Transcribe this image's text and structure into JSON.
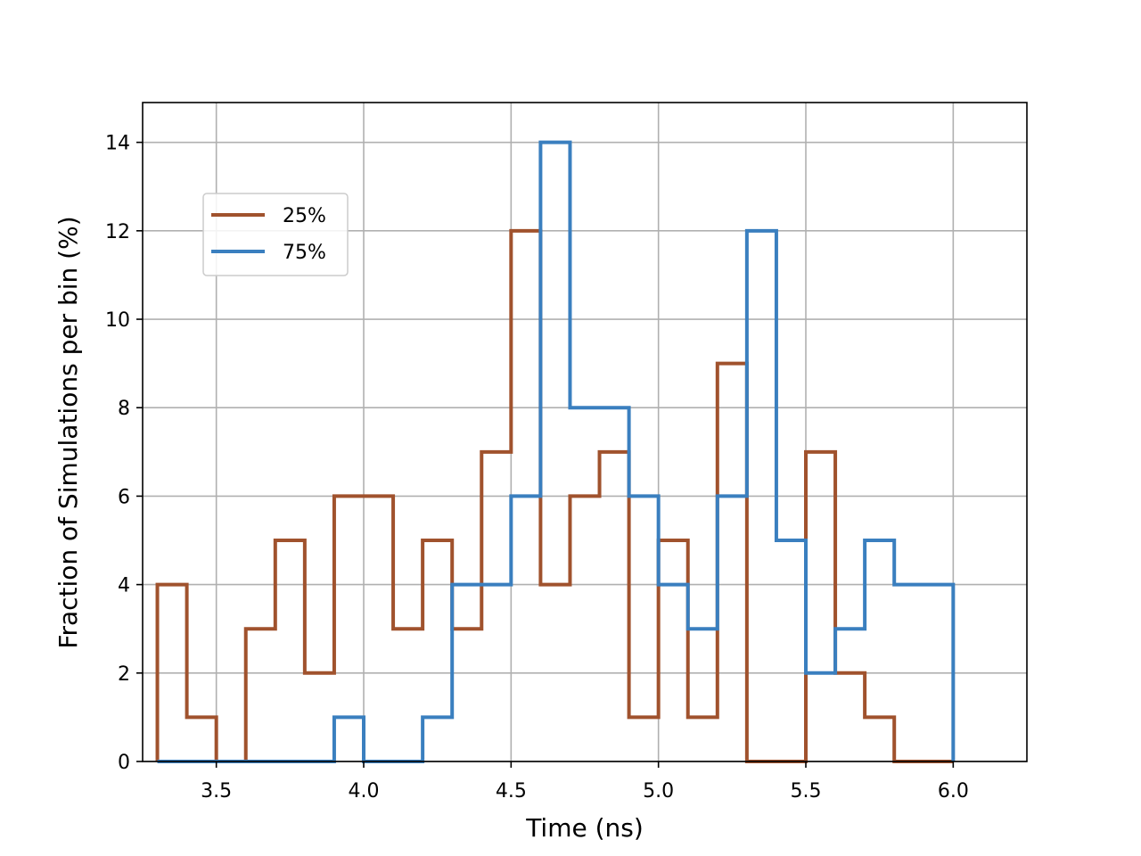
{
  "chart_data": {
    "type": "histogram-step",
    "xlabel": "Time (ns)",
    "ylabel": "Fraction of Simulations per bin (%)",
    "xlim": [
      3.25,
      6.25
    ],
    "ylim": [
      0,
      14.9
    ],
    "xticks": [
      3.5,
      4.0,
      4.5,
      5.0,
      5.5,
      6.0
    ],
    "xtick_labels": [
      "3.5",
      "4.0",
      "4.5",
      "5.0",
      "5.5",
      "6.0"
    ],
    "yticks": [
      0,
      2,
      4,
      6,
      8,
      10,
      12,
      14
    ],
    "ytick_labels": [
      "0",
      "2",
      "4",
      "6",
      "8",
      "10",
      "12",
      "14"
    ],
    "grid": true,
    "legend_position": "upper-left",
    "bin_edges": [
      3.3,
      3.4,
      3.5,
      3.6,
      3.7,
      3.8,
      3.9,
      4.0,
      4.1,
      4.2,
      4.3,
      4.4,
      4.5,
      4.6,
      4.7,
      4.8,
      4.9,
      5.0,
      5.1,
      5.2,
      5.3,
      5.4,
      5.5,
      5.6,
      5.7,
      5.8,
      5.9,
      6.0
    ],
    "series": [
      {
        "name": "25%",
        "color": "#a0522d",
        "values": [
          4,
          1,
          0,
          3,
          5,
          2,
          6,
          6,
          3,
          5,
          3,
          7,
          12,
          4,
          6,
          7,
          1,
          5,
          1,
          9,
          0,
          0,
          7,
          2,
          1,
          0,
          0
        ]
      },
      {
        "name": "75%",
        "color": "#3a7fbf",
        "values": [
          0,
          0,
          0,
          0,
          0,
          0,
          1,
          0,
          0,
          1,
          4,
          4,
          6,
          14,
          8,
          8,
          6,
          4,
          3,
          6,
          12,
          5,
          2,
          3,
          5,
          4,
          4
        ]
      }
    ]
  }
}
